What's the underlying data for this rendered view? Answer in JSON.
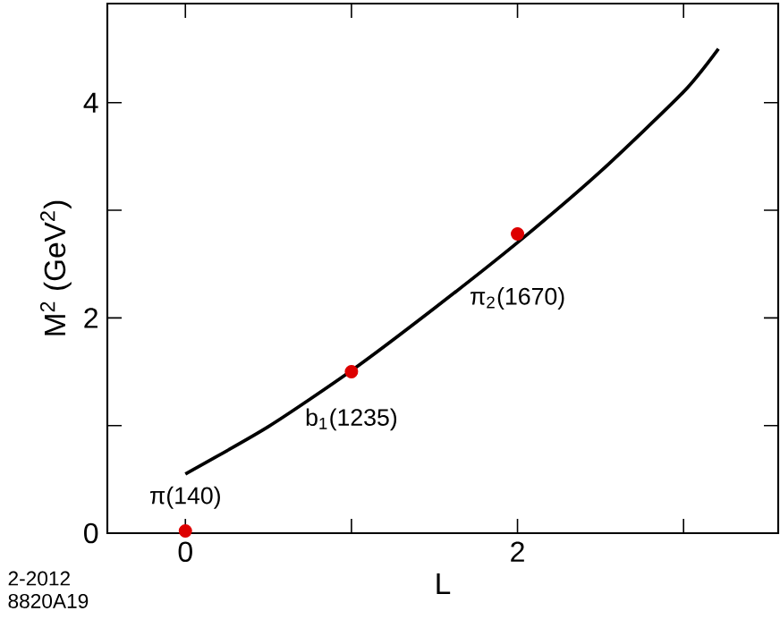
{
  "chart_data": {
    "type": "scatter",
    "xlabel": "L",
    "ylabel": "M$^{2}$ (GeV$^{2}$)",
    "xlim": [
      -0.47,
      3.57
    ],
    "ylim": [
      0,
      4.92
    ],
    "xticks": [
      0,
      {
        "value": 1,
        "label": null
      },
      2,
      {
        "value": 3,
        "label": null
      }
    ],
    "yticks": [
      0,
      {
        "value": 1,
        "label": null
      },
      2,
      {
        "value": 3,
        "label": null
      },
      4
    ],
    "grid": false,
    "series": [
      {
        "type": "line",
        "color": "#000000",
        "x": [
          0,
          0.5,
          1,
          1.5,
          2,
          2.5,
          3,
          3.21
        ],
        "values": [
          0.55,
          0.99,
          1.51,
          2.09,
          2.7,
          3.36,
          4.1,
          4.5
        ]
      },
      {
        "color": "#dd0000",
        "x": [
          0,
          1,
          2
        ],
        "values": [
          0.02,
          1.5,
          2.78
        ]
      }
    ],
    "annotations": [
      {
        "text": "π(140)",
        "x": 0,
        "y": 0.02
      },
      {
        "text": "b$_{1}$(1235)",
        "x": 1,
        "y": 1.5
      },
      {
        "text": "π$_{2}$(1670)",
        "x": 2,
        "y": 2.78
      },
      "2-2012",
      "8820A19"
    ]
  }
}
